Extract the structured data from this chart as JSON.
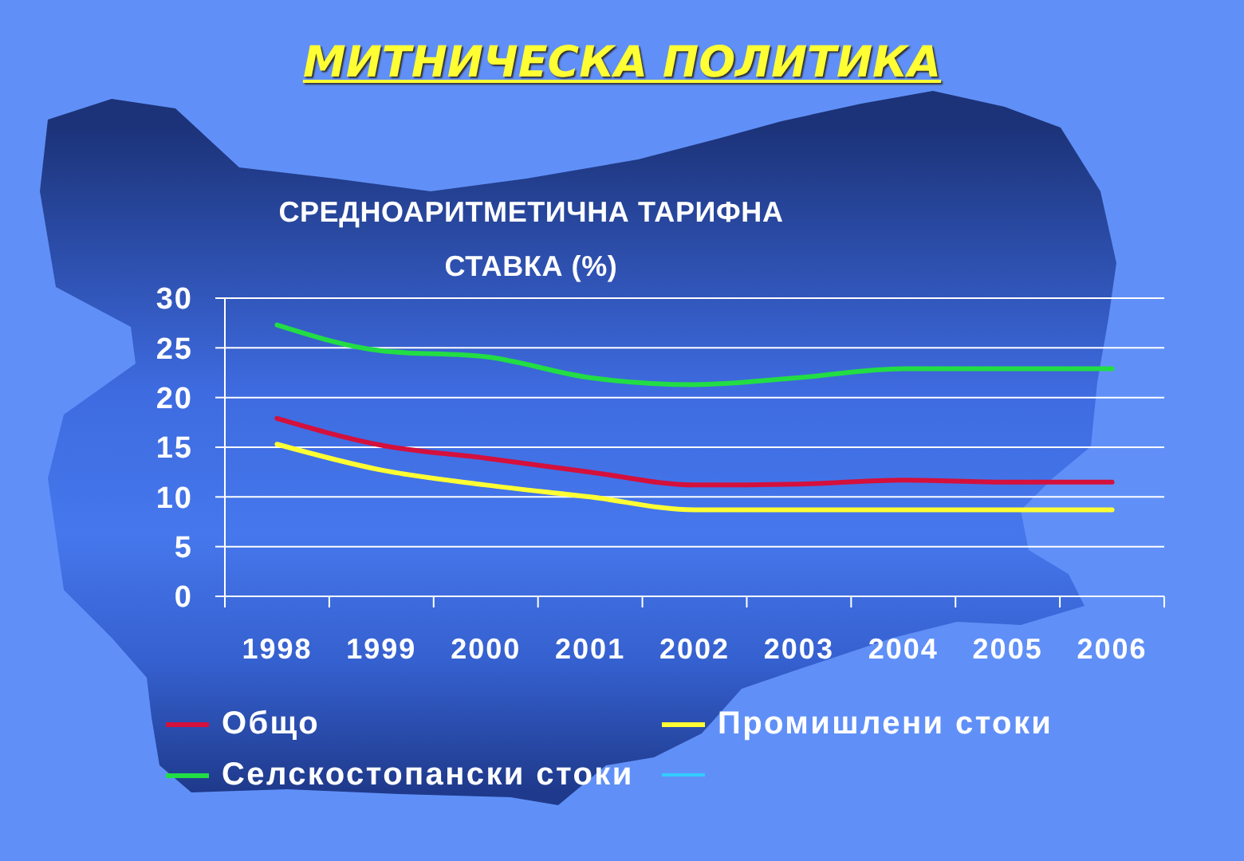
{
  "chart_data": {
    "type": "line",
    "title": "МИТНИЧЕСКА ПОЛИТИКА",
    "subtitle": "СРЕДНОАРИТМЕТИЧНА ТАРИФНА СТАВКА (%)",
    "categories": [
      "1998",
      "1999",
      "2000",
      "2001",
      "2002",
      "2003",
      "2004",
      "2005",
      "2006"
    ],
    "series": [
      {
        "name": "Общо",
        "color": "#d4103c",
        "values": [
          17.9,
          15.2,
          13.9,
          12.5,
          11.2,
          11.3,
          11.7,
          11.5,
          11.5
        ]
      },
      {
        "name": "Промишлени стоки",
        "color": "#ffff33",
        "values": [
          15.3,
          12.7,
          11.2,
          10.0,
          8.7,
          8.7,
          8.7,
          8.7,
          8.7
        ]
      },
      {
        "name": "Селскостопански стоки",
        "color": "#22dd44",
        "values": [
          27.3,
          24.7,
          24.1,
          22.0,
          21.3,
          22.0,
          22.9,
          22.9,
          22.9
        ]
      },
      {
        "color": "#33ccff",
        "values": [
          null,
          null,
          null,
          null,
          null,
          null,
          null,
          null,
          null
        ]
      }
    ],
    "ylim": [
      0,
      30
    ],
    "yticks": [
      0,
      5,
      10,
      15,
      20,
      25,
      30
    ],
    "grid": "y",
    "legend": "bottom",
    "marker": "none",
    "line_style": "solid"
  }
}
